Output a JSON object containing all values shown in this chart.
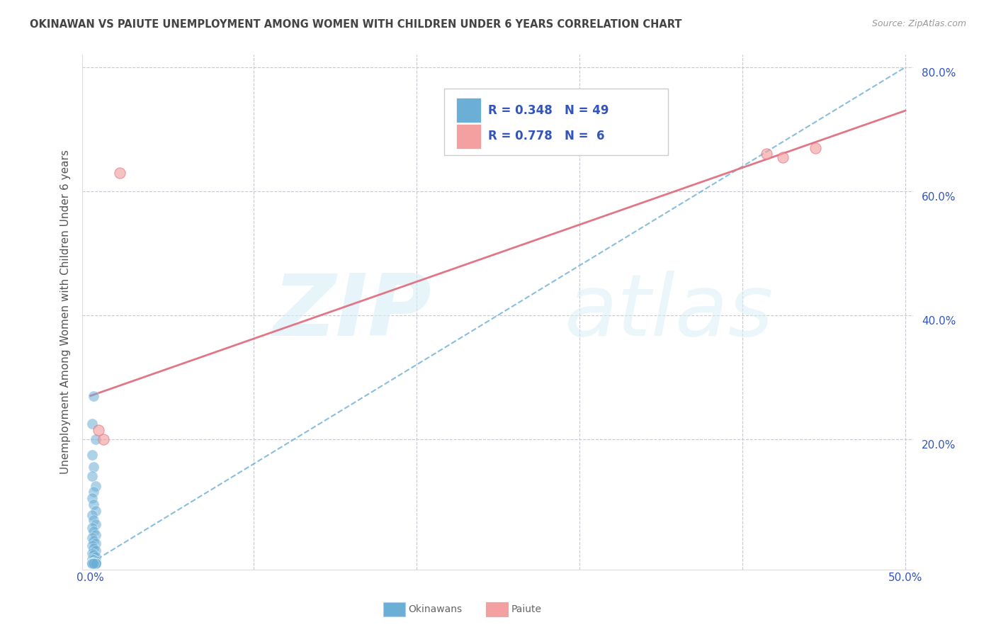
{
  "title": "OKINAWAN VS PAIUTE UNEMPLOYMENT AMONG WOMEN WITH CHILDREN UNDER 6 YEARS CORRELATION CHART",
  "source": "Source: ZipAtlas.com",
  "ylabel": "Unemployment Among Women with Children Under 6 years",
  "xlim": [
    -0.005,
    0.505
  ],
  "ylim": [
    -0.01,
    0.82
  ],
  "xticks": [
    0.0,
    0.05,
    0.1,
    0.15,
    0.2,
    0.25,
    0.3,
    0.35,
    0.4,
    0.45,
    0.5
  ],
  "yticks": [
    0.0,
    0.1,
    0.2,
    0.3,
    0.4,
    0.5,
    0.6,
    0.7,
    0.8
  ],
  "xtick_labels": [
    "0.0%",
    "",
    "",
    "",
    "",
    "",
    "",
    "",
    "",
    "",
    "50.0%"
  ],
  "ytick_labels_right": [
    "",
    "",
    "20.0%",
    "",
    "40.0%",
    "",
    "60.0%",
    "",
    "80.0%"
  ],
  "okinawan_color": "#6baed6",
  "paiute_color": "#f4a0a0",
  "paiute_line_color": "#e07080",
  "okinawan_R": 0.348,
  "okinawan_N": 49,
  "paiute_R": 0.778,
  "paiute_N": 6,
  "okinawan_scatter": [
    [
      0.002,
      0.27
    ],
    [
      0.001,
      0.225
    ],
    [
      0.003,
      0.2
    ],
    [
      0.001,
      0.175
    ],
    [
      0.002,
      0.155
    ],
    [
      0.001,
      0.14
    ],
    [
      0.003,
      0.125
    ],
    [
      0.002,
      0.115
    ],
    [
      0.001,
      0.105
    ],
    [
      0.002,
      0.095
    ],
    [
      0.003,
      0.085
    ],
    [
      0.001,
      0.078
    ],
    [
      0.002,
      0.07
    ],
    [
      0.003,
      0.063
    ],
    [
      0.001,
      0.057
    ],
    [
      0.002,
      0.051
    ],
    [
      0.003,
      0.046
    ],
    [
      0.001,
      0.041
    ],
    [
      0.002,
      0.036
    ],
    [
      0.003,
      0.032
    ],
    [
      0.001,
      0.028
    ],
    [
      0.002,
      0.024
    ],
    [
      0.003,
      0.02
    ],
    [
      0.001,
      0.016
    ],
    [
      0.002,
      0.013
    ],
    [
      0.003,
      0.01
    ],
    [
      0.001,
      0.007
    ],
    [
      0.002,
      0.005
    ],
    [
      0.003,
      0.003
    ],
    [
      0.001,
      0.001
    ],
    [
      0.001,
      0.0
    ],
    [
      0.002,
      0.0
    ],
    [
      0.003,
      0.0
    ],
    [
      0.001,
      0.0
    ],
    [
      0.002,
      0.0
    ],
    [
      0.003,
      0.0
    ],
    [
      0.001,
      0.0
    ],
    [
      0.002,
      0.0
    ],
    [
      0.001,
      0.0
    ],
    [
      0.002,
      0.0
    ],
    [
      0.003,
      0.0
    ],
    [
      0.001,
      0.0
    ],
    [
      0.002,
      0.0
    ],
    [
      0.003,
      0.0
    ],
    [
      0.001,
      0.0
    ],
    [
      0.002,
      0.0
    ],
    [
      0.001,
      0.0
    ],
    [
      0.003,
      0.0
    ],
    [
      0.002,
      0.0
    ]
  ],
  "paiute_scatter": [
    [
      0.018,
      0.63
    ],
    [
      0.005,
      0.215
    ],
    [
      0.008,
      0.2
    ],
    [
      0.415,
      0.66
    ],
    [
      0.425,
      0.655
    ],
    [
      0.445,
      0.67
    ]
  ],
  "okinawan_trend_x": [
    0.0,
    0.5
  ],
  "okinawan_trend_y": [
    0.0,
    0.8
  ],
  "paiute_trend_x": [
    0.0,
    0.5
  ],
  "paiute_trend_y": [
    0.27,
    0.73
  ],
  "watermark_zip": "ZIP",
  "watermark_atlas": "atlas",
  "background_color": "#ffffff",
  "grid_color": "#c8c8d0",
  "title_color": "#444444",
  "axis_label_color": "#555555",
  "tick_color": "#3355bb",
  "legend_color": "#3355bb",
  "legend_R_color": "#3355bb"
}
